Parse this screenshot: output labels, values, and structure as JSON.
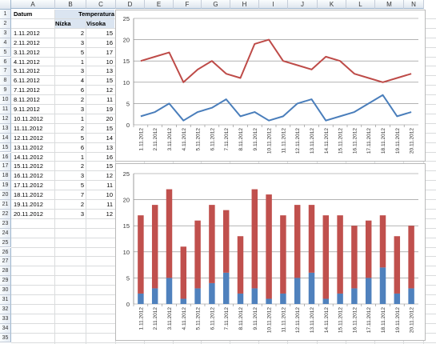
{
  "columns": [
    "A",
    "B",
    "C",
    "D",
    "E",
    "F",
    "G",
    "H",
    "I",
    "J",
    "K",
    "L",
    "M",
    "N"
  ],
  "rows": [
    "1",
    "2",
    "3",
    "4",
    "5",
    "6",
    "7",
    "8",
    "9",
    "10",
    "11",
    "12",
    "13",
    "14",
    "15",
    "16",
    "17",
    "18",
    "19",
    "20",
    "21",
    "22",
    "23",
    "24",
    "25",
    "26",
    "27",
    "28",
    "29",
    "30",
    "31",
    "32",
    "33",
    "34",
    "35"
  ],
  "table": {
    "header_datum": "Datum",
    "header_temperatura": "Temperatura",
    "header_nizka": "Nízka",
    "header_visoka": "Visoka",
    "records": [
      {
        "date": "1.11.2012",
        "low": "2",
        "high": "15"
      },
      {
        "date": "2.11.2012",
        "low": "3",
        "high": "16"
      },
      {
        "date": "3.11.2012",
        "low": "5",
        "high": "17"
      },
      {
        "date": "4.11.2012",
        "low": "1",
        "high": "10"
      },
      {
        "date": "5.11.2012",
        "low": "3",
        "high": "13"
      },
      {
        "date": "6.11.2012",
        "low": "4",
        "high": "15"
      },
      {
        "date": "7.11.2012",
        "low": "6",
        "high": "12"
      },
      {
        "date": "8.11.2012",
        "low": "2",
        "high": "11"
      },
      {
        "date": "9.11.2012",
        "low": "3",
        "high": "19"
      },
      {
        "date": "10.11.2012",
        "low": "1",
        "high": "20"
      },
      {
        "date": "11.11.2012",
        "low": "2",
        "high": "15"
      },
      {
        "date": "12.11.2012",
        "low": "5",
        "high": "14"
      },
      {
        "date": "13.11.2012",
        "low": "6",
        "high": "13"
      },
      {
        "date": "14.11.2012",
        "low": "1",
        "high": "16"
      },
      {
        "date": "15.11.2012",
        "low": "2",
        "high": "15"
      },
      {
        "date": "16.11.2012",
        "low": "3",
        "high": "12"
      },
      {
        "date": "17.11.2012",
        "low": "5",
        "high": "11"
      },
      {
        "date": "18.11.2012",
        "low": "7",
        "high": "10"
      },
      {
        "date": "19.11.2012",
        "low": "2",
        "high": "11"
      },
      {
        "date": "20.11.2012",
        "low": "3",
        "high": "12"
      }
    ]
  },
  "chart_data": [
    {
      "type": "line",
      "categories": [
        "1.11.2012",
        "2.11.2012",
        "3.11.2012",
        "4.11.2012",
        "5.11.2012",
        "6.11.2012",
        "7.11.2012",
        "8.11.2012",
        "9.11.2012",
        "10.11.2012",
        "11.11.2012",
        "12.11.2012",
        "13.11.2012",
        "14.11.2012",
        "15.11.2012",
        "16.11.2012",
        "17.11.2012",
        "18.11.2012",
        "19.11.2012",
        "20.11.2012"
      ],
      "series": [
        {
          "values": [
            2,
            3,
            5,
            1,
            3,
            4,
            6,
            2,
            3,
            1,
            2,
            5,
            6,
            1,
            2,
            3,
            5,
            7,
            2,
            3
          ],
          "color": "#4a7ebb"
        },
        {
          "values": [
            15,
            16,
            17,
            10,
            13,
            15,
            12,
            11,
            19,
            20,
            15,
            14,
            13,
            16,
            15,
            12,
            11,
            10,
            11,
            12
          ],
          "color": "#be4b48"
        }
      ],
      "ylim": [
        0,
        25
      ],
      "yticks": [
        "0",
        "5",
        "10",
        "15",
        "20",
        "25"
      ],
      "grid": true
    },
    {
      "type": "bar",
      "stacked": true,
      "categories": [
        "1.11.2012",
        "2.11.2012",
        "3.11.2012",
        "4.11.2012",
        "5.11.2012",
        "6.11.2012",
        "7.11.2012",
        "8.11.2012",
        "9.11.2012",
        "10.11.2012",
        "11.11.2012",
        "12.11.2012",
        "13.11.2012",
        "14.11.2012",
        "15.11.2012",
        "16.11.2012",
        "17.11.2012",
        "18.11.2012",
        "19.11.2012",
        "20.11.2012"
      ],
      "series": [
        {
          "values": [
            2,
            3,
            5,
            1,
            3,
            4,
            6,
            2,
            3,
            1,
            2,
            5,
            6,
            1,
            2,
            3,
            5,
            7,
            2,
            3
          ],
          "color": "#4f81bd"
        },
        {
          "values": [
            15,
            16,
            17,
            10,
            13,
            15,
            12,
            11,
            19,
            20,
            15,
            14,
            13,
            16,
            15,
            12,
            11,
            10,
            11,
            12
          ],
          "color": "#c0504d"
        }
      ],
      "ylim": [
        0,
        25
      ],
      "yticks": [
        "0",
        "5",
        "10",
        "15",
        "20",
        "25"
      ],
      "grid": true
    }
  ]
}
